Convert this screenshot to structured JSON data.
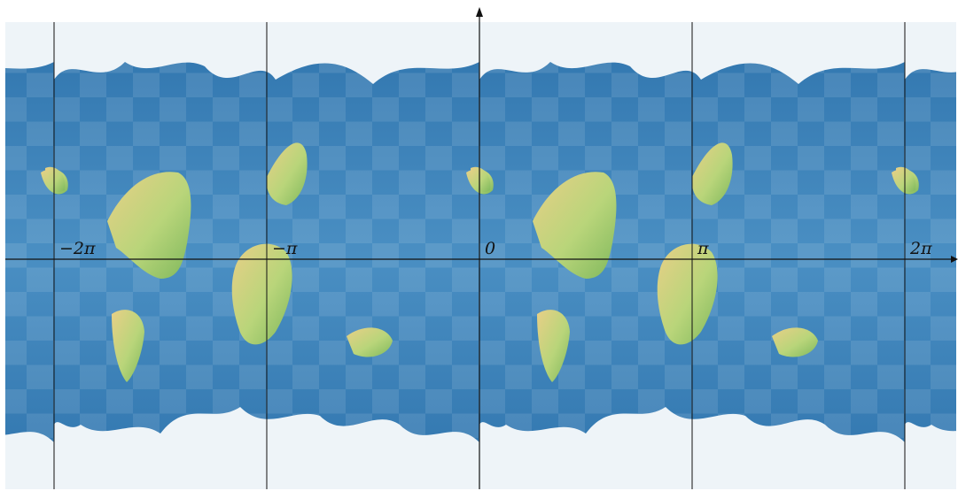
{
  "figure": {
    "title": "",
    "ticks": [
      {
        "value": -2,
        "label": "−2π"
      },
      {
        "value": -1,
        "label": "−π"
      },
      {
        "value": 0,
        "label": "0"
      },
      {
        "value": 1,
        "label": "π"
      },
      {
        "value": 2,
        "label": "2π"
      }
    ],
    "x_range_in_pi": [
      -2.23,
      2.25
    ],
    "periodic_tiles": 4,
    "colors": {
      "ocean": "#3f86bd",
      "ocean_dark": "#2b6ea6",
      "ice": "#eef4f8",
      "land": "#9ccc67",
      "land_dry": "#e8cf87",
      "axis": "#111111"
    }
  }
}
